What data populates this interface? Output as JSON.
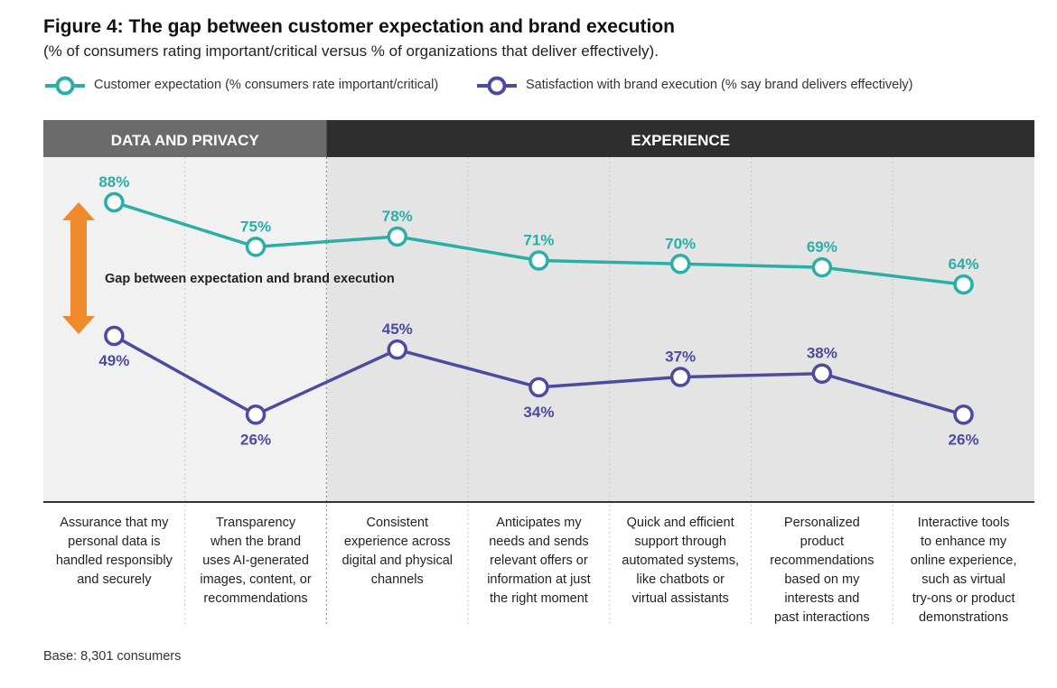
{
  "title": "Figure 4: The gap between customer expectation and brand execution",
  "subtitle": "(% of consumers rating important/critical versus % of organizations that deliver effectively).",
  "base_note": "Base: 8,301 consumers",
  "colors": {
    "expectation": "#2aaea6",
    "execution": "#4b4ba0",
    "arrow": "#f0892c",
    "section_data_privacy": "#6b6b6b",
    "section_experience": "#2e2e2e",
    "panel_light": "#f1f1f1",
    "panel_dark": "#e4e4e4"
  },
  "chart_data": {
    "type": "line",
    "sections": [
      {
        "label": "DATA AND PRIVACY",
        "categories": 2
      },
      {
        "label": "EXPERIENCE",
        "categories": 5
      }
    ],
    "categories": [
      "Assurance that my personal data is handled responsibly and securely",
      "Transparency when the brand uses AI-generated images, content, or recommendations",
      "Consistent experience across digital and physical channels",
      "Anticipates my needs and sends relevant offers or information at just the right moment",
      "Quick and efficient support through automated systems, like chatbots or virtual assistants",
      "Personalized product recommendations based on my interests and past interactions",
      "Interactive tools to enhance my online experience, such as virtual try-ons or product demonstrations"
    ],
    "category_lines": [
      [
        "Assurance that my",
        "personal data is",
        "handled responsibly",
        "and securely"
      ],
      [
        "Transparency",
        "when the brand",
        "uses AI-generated",
        "images, content, or",
        "recommendations"
      ],
      [
        "Consistent",
        "experience across",
        "digital and physical",
        "channels"
      ],
      [
        "Anticipates my",
        "needs and sends",
        "relevant offers or",
        "information at just",
        "the right moment"
      ],
      [
        "Quick and efficient",
        "support through",
        "automated systems,",
        "like chatbots or",
        "virtual assistants"
      ],
      [
        "Personalized",
        "product",
        "recommendations",
        "based on my",
        "interests and",
        "past interactions"
      ],
      [
        "Interactive tools",
        "to enhance my",
        "online experience,",
        "such as virtual",
        "try-ons or product",
        "demonstrations"
      ]
    ],
    "series": [
      {
        "name": "Customer expectation (% consumers rate important/critical)",
        "values": [
          88,
          75,
          78,
          71,
          70,
          69,
          64
        ],
        "labels": [
          "88%",
          "75%",
          "78%",
          "71%",
          "70%",
          "69%",
          "64%"
        ]
      },
      {
        "name": "Satisfaction with brand execution (% say brand delivers effectively)",
        "values": [
          49,
          26,
          45,
          34,
          37,
          38,
          26
        ],
        "labels": [
          "49%",
          "26%",
          "45%",
          "34%",
          "37%",
          "38%",
          "26%"
        ]
      }
    ],
    "annotation": "Gap between expectation and brand execution",
    "ylim": [
      0,
      100
    ],
    "grid": false,
    "legend_position": "top-left"
  }
}
